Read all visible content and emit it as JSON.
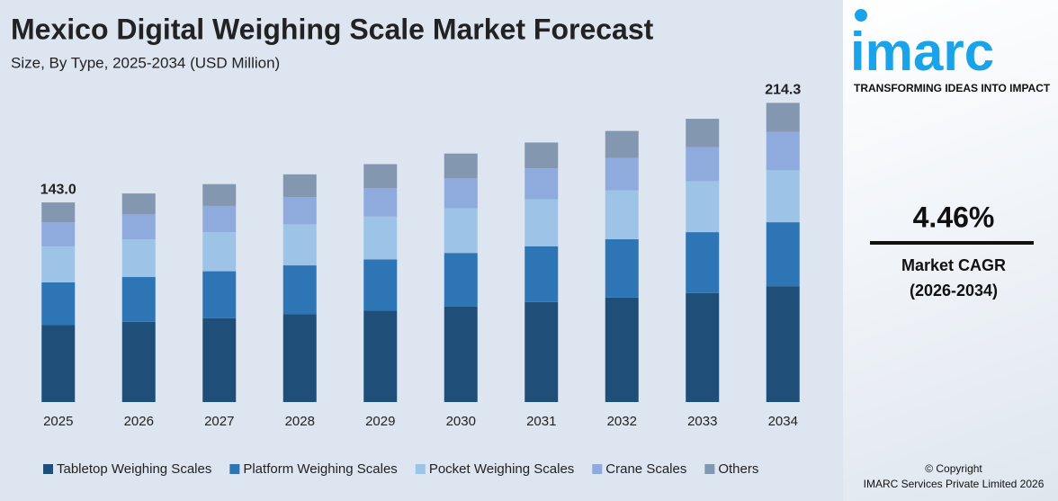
{
  "chart_data": {
    "type": "stacked_bar",
    "title": "Mexico Digital Weighing Scale Market Forecast",
    "subtitle": "Size, By Type, 2025-2034 (USD Million)",
    "categories": [
      "2025",
      "2026",
      "2027",
      "2028",
      "2029",
      "2030",
      "2031",
      "2032",
      "2033",
      "2034"
    ],
    "series": [
      {
        "name": "Tabletop Weighing Scales",
        "color": "#1f4e79",
        "values": [
          55.1,
          57.5,
          60.1,
          62.8,
          65.6,
          68.5,
          71.6,
          74.8,
          78.1,
          83.0
        ]
      },
      {
        "name": "Platform Weighing Scales",
        "color": "#2e75b6",
        "values": [
          30.7,
          32.1,
          33.6,
          35.1,
          36.6,
          38.3,
          40.0,
          41.8,
          43.6,
          45.8
        ]
      },
      {
        "name": "Pocket Weighing Scales",
        "color": "#9dc3e6",
        "values": [
          25.7,
          26.9,
          28.1,
          29.4,
          30.7,
          32.0,
          33.5,
          35.0,
          36.5,
          37.2
        ]
      },
      {
        "name": "Crane Scales",
        "color": "#8faadc",
        "values": [
          17.2,
          17.9,
          18.7,
          19.6,
          20.4,
          21.4,
          22.3,
          23.3,
          24.3,
          27.5
        ]
      },
      {
        "name": "Others",
        "color": "#8497b0",
        "values": [
          14.3,
          15.0,
          15.6,
          16.2,
          17.1,
          17.8,
          18.5,
          19.3,
          20.4,
          20.8
        ]
      }
    ],
    "annotations": [
      {
        "category": "2025",
        "value": 143,
        "label": "143.0"
      },
      {
        "category": "2034",
        "value": 214.3,
        "label": "214.3"
      }
    ],
    "ylim": [
      0,
      230
    ],
    "legend": "bottom"
  },
  "sidebar": {
    "logo": "imarc",
    "tagline": "TRANSFORMING IDEAS INTO IMPACT",
    "cagr": "4.46%",
    "cagr_label": "Market CAGR",
    "cagr_period": "(2026-2034)",
    "copyright": "© Copyright",
    "company": "IMARC Services Private Limited 2026"
  }
}
